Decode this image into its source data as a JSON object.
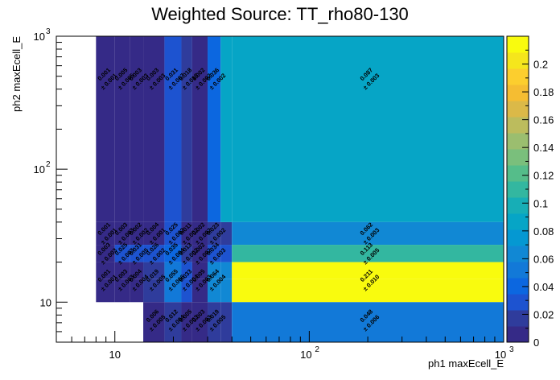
{
  "chart_data": {
    "type": "heatmap",
    "title": "Weighted Source: TT_rho80-130",
    "xlabel": "ph1 maxEcell_E",
    "ylabel": "ph2 maxEcell_E",
    "xscale": "log",
    "yscale": "log",
    "xlim": [
      5,
      1000
    ],
    "ylim": [
      5,
      1000
    ],
    "x_ticks": [
      {
        "value": 10,
        "label": "10"
      },
      {
        "value": 100,
        "label": "10"
      },
      {
        "value": 1000,
        "label": "10"
      }
    ],
    "x_tick_exps": [
      "",
      "2",
      "3"
    ],
    "y_ticks": [
      {
        "value": 10,
        "label": "10"
      },
      {
        "value": 100,
        "label": "10"
      },
      {
        "value": 1000,
        "label": "10"
      }
    ],
    "y_tick_exps": [
      "",
      "2",
      "3"
    ],
    "x_edges": [
      8,
      10,
      12,
      14,
      18,
      22,
      25,
      30,
      35,
      40,
      1000
    ],
    "y_edges": [
      5,
      10,
      15,
      20,
      27,
      40,
      1000
    ],
    "z_range": [
      0,
      0.22
    ],
    "palette": [
      "#352a87",
      "#2f3c9c",
      "#1d53d0",
      "#0c67e0",
      "#1279d8",
      "#1188d4",
      "#0598d2",
      "#06a5c6",
      "#17aeb6",
      "#33b7a0",
      "#55bd8a",
      "#7abf7c",
      "#9bbe6f",
      "#bcbc5d",
      "#dbb948",
      "#f5bd32",
      "#fcce2e",
      "#f5e61c",
      "#f9fb0e"
    ],
    "colorbar_ticks": [
      "0",
      "0.02",
      "0.04",
      "0.06",
      "0.08",
      "0.1",
      "0.12",
      "0.14",
      "0.16",
      "0.18",
      "0.2"
    ],
    "colorbar_tick_values": [
      0,
      0.02,
      0.04,
      0.06,
      0.08,
      0.1,
      0.12,
      0.14,
      0.16,
      0.18,
      0.2
    ],
    "cells": [
      {
        "xi": 0,
        "yi": 5,
        "value": 0.001,
        "error": 0.001,
        "label": "0.001",
        "err_label": "± 0.001"
      },
      {
        "xi": 1,
        "yi": 5,
        "value": 0.005,
        "error": 0.005,
        "label": "0.005",
        "err_label": "± 0.005"
      },
      {
        "xi": 2,
        "yi": 5,
        "value": 0.003,
        "error": 0.003,
        "label": "0.003",
        "err_label": "± 0.003"
      },
      {
        "xi": 3,
        "yi": 5,
        "value": 0.003,
        "error": 0.003,
        "label": "0.003",
        "err_label": "± 0.003"
      },
      {
        "xi": 4,
        "yi": 5,
        "value": 0.031,
        "error": 0.007,
        "label": "0.031",
        "err_label": "± 0.007"
      },
      {
        "xi": 5,
        "yi": 5,
        "value": 0.018,
        "error": 0.018,
        "label": "0.018",
        "err_label": "± 0.018"
      },
      {
        "xi": 6,
        "yi": 5,
        "value": 0.002,
        "error": 0.002,
        "label": "0.002",
        "err_label": "± 0.002"
      },
      {
        "xi": 7,
        "yi": 5,
        "value": 0.036,
        "error": 0.002,
        "label": "0.036",
        "err_label": "± 0.002"
      },
      {
        "xi": 9,
        "yi": 5,
        "value": 0.087,
        "error": 0.003,
        "label": "0.087",
        "err_label": "± 0.003"
      },
      {
        "xi": 0,
        "yi": 4,
        "value": 0.001,
        "error": 0.001,
        "label": "0.001",
        "err_label": "± 0.001"
      },
      {
        "xi": 1,
        "yi": 4,
        "value": 0.003,
        "error": 0.003,
        "label": "0.003",
        "err_label": "± 0.003"
      },
      {
        "xi": 2,
        "yi": 4,
        "value": 0.002,
        "error": 0.002,
        "label": "0.002",
        "err_label": "± 0.002"
      },
      {
        "xi": 3,
        "yi": 4,
        "value": 0.004,
        "error": 0.001,
        "label": "0.004",
        "err_label": "± 0.001"
      },
      {
        "xi": 4,
        "yi": 4,
        "value": 0.025,
        "error": 0.002,
        "label": "0.025",
        "err_label": "± 0.002"
      },
      {
        "xi": 5,
        "yi": 4,
        "value": 0.011,
        "error": 0.002,
        "label": "0.011",
        "err_label": "± 0.002"
      },
      {
        "xi": 6,
        "yi": 4,
        "value": 0.002,
        "error": 0.002,
        "label": "0.002",
        "err_label": "± 0.002"
      },
      {
        "xi": 7,
        "yi": 4,
        "value": 0.023,
        "error": 0.002,
        "label": "0.023",
        "err_label": "± 0.002"
      },
      {
        "xi": 9,
        "yi": 4,
        "value": 0.062,
        "error": 0.003,
        "label": "0.062",
        "err_label": "± 0.003"
      },
      {
        "xi": 0,
        "yi": 3,
        "value": 0.003,
        "error": 0.003,
        "label": "0.003",
        "err_label": "± 0.003"
      },
      {
        "xi": 1,
        "yi": 3,
        "value": 0.025,
        "error": 0.003,
        "label": "0.025",
        "err_label": "± 0.003"
      },
      {
        "xi": 2,
        "yi": 3,
        "value": 0.031,
        "error": 0.005,
        "label": "0.031",
        "err_label": "± 0.005"
      },
      {
        "xi": 3,
        "yi": 3,
        "value": 0.026,
        "error": 0.002,
        "label": "0.026",
        "err_label": "± 0.002"
      },
      {
        "xi": 4,
        "yi": 3,
        "value": 0.035,
        "error": 0.004,
        "label": "0.035",
        "err_label": "± 0.004"
      },
      {
        "xi": 5,
        "yi": 3,
        "value": 0.013,
        "error": 0.002,
        "label": "0.013",
        "err_label": "± 0.002"
      },
      {
        "xi": 6,
        "yi": 3,
        "value": 0.002,
        "error": 0.002,
        "label": "0.002",
        "err_label": "± 0.002"
      },
      {
        "xi": 7,
        "yi": 3,
        "value": 0.034,
        "error": 0.003,
        "label": "0.034",
        "err_label": "± 0.003"
      },
      {
        "xi": 9,
        "yi": 3,
        "value": 0.113,
        "error": 0.005,
        "label": "0.113",
        "err_label": "± 0.005"
      },
      {
        "xi": 0,
        "yi": 2,
        "value": 0.001,
        "error": 0.001,
        "label": "0.001",
        "err_label": "± 0.001"
      },
      {
        "xi": 1,
        "yi": 2,
        "value": 0.003,
        "error": 0.003,
        "label": "0.003",
        "err_label": "± 0.003"
      },
      {
        "xi": 2,
        "yi": 2,
        "value": 0.004,
        "error": 0.004,
        "label": "0.004",
        "err_label": "± 0.004"
      },
      {
        "xi": 3,
        "yi": 2,
        "value": 0.019,
        "error": 0.005,
        "label": "0.019",
        "err_label": "± 0.005"
      },
      {
        "xi": 4,
        "yi": 2,
        "value": 0.055,
        "error": 0.006,
        "label": "0.055",
        "err_label": "± 0.006"
      },
      {
        "xi": 5,
        "yi": 2,
        "value": 0.033,
        "error": 0.004,
        "label": "0.033",
        "err_label": "± 0.004"
      },
      {
        "xi": 6,
        "yi": 2,
        "value": 0.005,
        "error": 0.003,
        "label": "0.005",
        "err_label": "± 0.003"
      },
      {
        "xi": 7,
        "yi": 2,
        "value": 0.064,
        "error": 0.004,
        "label": "0.064",
        "err_label": "± 0.004"
      },
      {
        "xi": 9,
        "yi": 2,
        "value": 0.211,
        "error": 0.01,
        "label": "0.211",
        "err_label": "± 0.010"
      },
      {
        "xi": 3,
        "yi": 0,
        "value": 0.006,
        "error": 0.005,
        "label": "0.006",
        "err_label": "± 0.005"
      },
      {
        "xi": 4,
        "yi": 0,
        "value": 0.012,
        "error": 0.004,
        "label": "0.012",
        "err_label": "± 0.004"
      },
      {
        "xi": 5,
        "yi": 0,
        "value": 0.005,
        "error": 0.003,
        "label": "0.005",
        "err_label": "± 0.003"
      },
      {
        "xi": 6,
        "yi": 0,
        "value": 0.003,
        "error": 0.003,
        "label": "0.003",
        "err_label": "± 0.003"
      },
      {
        "xi": 7,
        "yi": 0,
        "value": 0.019,
        "error": 0.005,
        "label": "0.019",
        "err_label": "± 0.005"
      },
      {
        "xi": 9,
        "yi": 0,
        "value": 0.048,
        "error": 0.006,
        "label": "0.048",
        "err_label": "± 0.006"
      }
    ],
    "fill_only_cells": [
      {
        "xi": 0,
        "yi": 1,
        "value": 0.003
      },
      {
        "xi": 1,
        "yi": 1,
        "value": 0.003
      },
      {
        "xi": 2,
        "yi": 1,
        "value": 0.003
      },
      {
        "xi": 3,
        "yi": 1,
        "value": 0.019
      },
      {
        "xi": 4,
        "yi": 1,
        "value": 0.055
      },
      {
        "xi": 5,
        "yi": 1,
        "value": 0.033
      },
      {
        "xi": 6,
        "yi": 1,
        "value": 0.005
      },
      {
        "xi": 7,
        "yi": 1,
        "value": 0.064
      },
      {
        "xi": 8,
        "yi": 1,
        "value": 0.064
      },
      {
        "xi": 9,
        "yi": 1,
        "value": 0.211
      },
      {
        "xi": 8,
        "yi": 0,
        "value": 0.019
      },
      {
        "xi": 8,
        "yi": 2,
        "value": 0.064
      },
      {
        "xi": 8,
        "yi": 3,
        "value": 0.034
      },
      {
        "xi": 8,
        "yi": 4,
        "value": 0.023
      },
      {
        "xi": 8,
        "yi": 5,
        "value": 0.087
      }
    ]
  }
}
